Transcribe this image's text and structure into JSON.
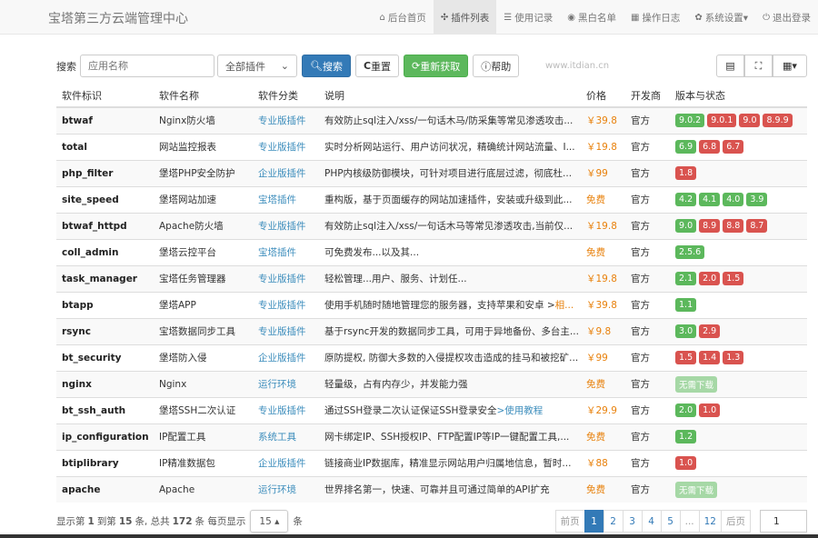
{
  "brand": "宝塔第三方云端管理中心",
  "menu": [
    {
      "icon": "home-icon",
      "glyph": "⌂",
      "label": "后台首页"
    },
    {
      "icon": "cubes-icon",
      "glyph": "✣",
      "label": "插件列表",
      "active": true
    },
    {
      "icon": "list-icon",
      "glyph": "☰",
      "label": "使用记录"
    },
    {
      "icon": "globe-icon",
      "glyph": "◉",
      "label": "黑白名单"
    },
    {
      "icon": "calendar-icon",
      "glyph": "▦",
      "label": "操作日志"
    },
    {
      "icon": "gear-icon",
      "glyph": "✿",
      "label": "系统设置▾"
    },
    {
      "icon": "power-icon",
      "glyph": "⏻",
      "label": "退出登录"
    }
  ],
  "toolbar": {
    "search_label": "搜索",
    "search_placeholder": "应用名称",
    "filter_value": "全部插件",
    "search_btn": "搜索",
    "reset_btn": "重置",
    "refetch_btn": "重新获取",
    "help_btn": "帮助"
  },
  "columns": [
    "软件标识",
    "软件名称",
    "软件分类",
    "说明",
    "价格",
    "开发商",
    "版本与状态"
  ],
  "rows": [
    {
      "id": "btwaf",
      "name": "Nginx防火墙",
      "cat": "专业版插件",
      "desc": "有效防止sql注入/xss/一句话木马/防采集等常见渗透攻击...",
      "price": "￥39.8",
      "dev": "官方",
      "versions": [
        [
          "9.0.2",
          "g"
        ],
        [
          "9.0.1",
          "r"
        ],
        [
          "9.0",
          "r"
        ],
        [
          "8.9.9",
          "r"
        ]
      ]
    },
    {
      "id": "total",
      "name": "网站监控报表",
      "cat": "专业版插件",
      "desc": "实时分析网站运行、用户访问状况，精确统计网站流量、I...",
      "price": "￥19.8",
      "dev": "官方",
      "versions": [
        [
          "6.9",
          "g"
        ],
        [
          "6.8",
          "r"
        ],
        [
          "6.7",
          "r"
        ]
      ]
    },
    {
      "id": "php_filter",
      "name": "堡塔PHP安全防护",
      "cat": "企业版插件",
      "desc": "PHP内核级防御模块，可针对项目进行底层过滤，彻底杜...",
      "price": "￥99",
      "dev": "官方",
      "versions": [
        [
          "1.8",
          "r"
        ]
      ]
    },
    {
      "id": "site_speed",
      "name": "堡塔网站加速",
      "cat": "宝塔插件",
      "desc": "重构版，基于页面缓存的网站加速插件，安装或升级到此...",
      "price": "免费",
      "dev": "官方",
      "versions": [
        [
          "4.2",
          "g"
        ],
        [
          "4.1",
          "g"
        ],
        [
          "4.0",
          "g"
        ],
        [
          "3.9",
          "g"
        ]
      ]
    },
    {
      "id": "btwaf_httpd",
      "name": "Apache防火墙",
      "cat": "专业版插件",
      "desc": "有效防止sql注入/xss/一句话木马等常见渗透攻击,当前仅...",
      "price": "￥19.8",
      "dev": "官方",
      "versions": [
        [
          "9.0",
          "g"
        ],
        [
          "8.9",
          "r"
        ],
        [
          "8.8",
          "r"
        ],
        [
          "8.7",
          "r"
        ]
      ]
    },
    {
      "id": "coll_admin",
      "name": "堡塔云控平台",
      "cat": "宝塔插件",
      "desc": "可免费发布...以及其...",
      "price": "免费",
      "dev": "官方",
      "versions": [
        [
          "2.5.6",
          "g"
        ]
      ]
    },
    {
      "id": "task_manager",
      "name": "宝塔任务管理器",
      "cat": "专业版插件",
      "desc": "轻松管理...用户、服务、计划任...",
      "price": "￥19.8",
      "dev": "官方",
      "versions": [
        [
          "2.1",
          "g"
        ],
        [
          "2.0",
          "r"
        ],
        [
          "1.5",
          "r"
        ]
      ]
    },
    {
      "id": "btapp",
      "name": "堡塔APP",
      "cat": "专业版插件",
      "desc": "使用手机随时随地管理您的服务器，支持苹果和安卓 >",
      "desc_link": "相...",
      "price": "￥39.8",
      "dev": "官方",
      "versions": [
        [
          "1.1",
          "g"
        ]
      ]
    },
    {
      "id": "rsync",
      "name": "宝塔数据同步工具",
      "cat": "专业版插件",
      "desc": "基于rsync开发的数据同步工具，可用于异地备份、多台主...",
      "price": "￥9.8",
      "dev": "官方",
      "versions": [
        [
          "3.0",
          "g"
        ],
        [
          "2.9",
          "r"
        ]
      ]
    },
    {
      "id": "bt_security",
      "name": "堡塔防入侵",
      "cat": "企业版插件",
      "desc": "原防提权, 防御大多数的入侵提权攻击造成的挂马和被挖矿...",
      "price": "￥99",
      "dev": "官方",
      "versions": [
        [
          "1.5",
          "r"
        ],
        [
          "1.4",
          "r"
        ],
        [
          "1.3",
          "r"
        ]
      ]
    },
    {
      "id": "nginx",
      "name": "Nginx",
      "cat": "运行环境",
      "desc": "轻量级，占有内存少，并发能力强",
      "price": "免费",
      "dev": "官方",
      "versions": [
        [
          "无需下载",
          "l"
        ]
      ]
    },
    {
      "id": "bt_ssh_auth",
      "name": "堡塔SSH二次认证",
      "cat": "专业版插件",
      "desc": "通过SSH登录二次认证保证SSH登录安全",
      "desc_link2": ">使用教程",
      "price": "￥29.9",
      "dev": "官方",
      "versions": [
        [
          "2.0",
          "g"
        ],
        [
          "1.0",
          "r"
        ]
      ]
    },
    {
      "id": "ip_configuration",
      "name": "IP配置工具",
      "cat": "系统工具",
      "desc": "网卡绑定IP、SSH授权IP、FTP配置IP等IP一键配置工具,...",
      "price": "免费",
      "dev": "官方",
      "versions": [
        [
          "1.2",
          "g"
        ]
      ]
    },
    {
      "id": "btiplibrary",
      "name": "IP精准数据包",
      "cat": "企业版插件",
      "desc": "链接商业IP数据库，精准显示网站用户归属地信息，暂时...",
      "price": "￥88",
      "dev": "官方",
      "versions": [
        [
          "1.0",
          "r"
        ]
      ]
    },
    {
      "id": "apache",
      "name": "Apache",
      "cat": "运行环境",
      "desc": "世界排名第一，快速、可靠并且可通过简单的API扩充",
      "price": "免费",
      "dev": "官方",
      "versions": [
        [
          "无需下载",
          "l"
        ]
      ]
    }
  ],
  "footer": {
    "t1": "显示第",
    "from": "1",
    "t2": "到第",
    "to": "15",
    "t3": "条, 总共",
    "total": "172",
    "t4": "条  每页显示",
    "per_page": "15 ▴",
    "t5": "条"
  },
  "pager": {
    "prev": "前页",
    "pages": [
      "1",
      "2",
      "3",
      "4",
      "5",
      "...",
      "12"
    ],
    "next": "后页",
    "goto": "1"
  },
  "watermark": "www.itdian.cn"
}
